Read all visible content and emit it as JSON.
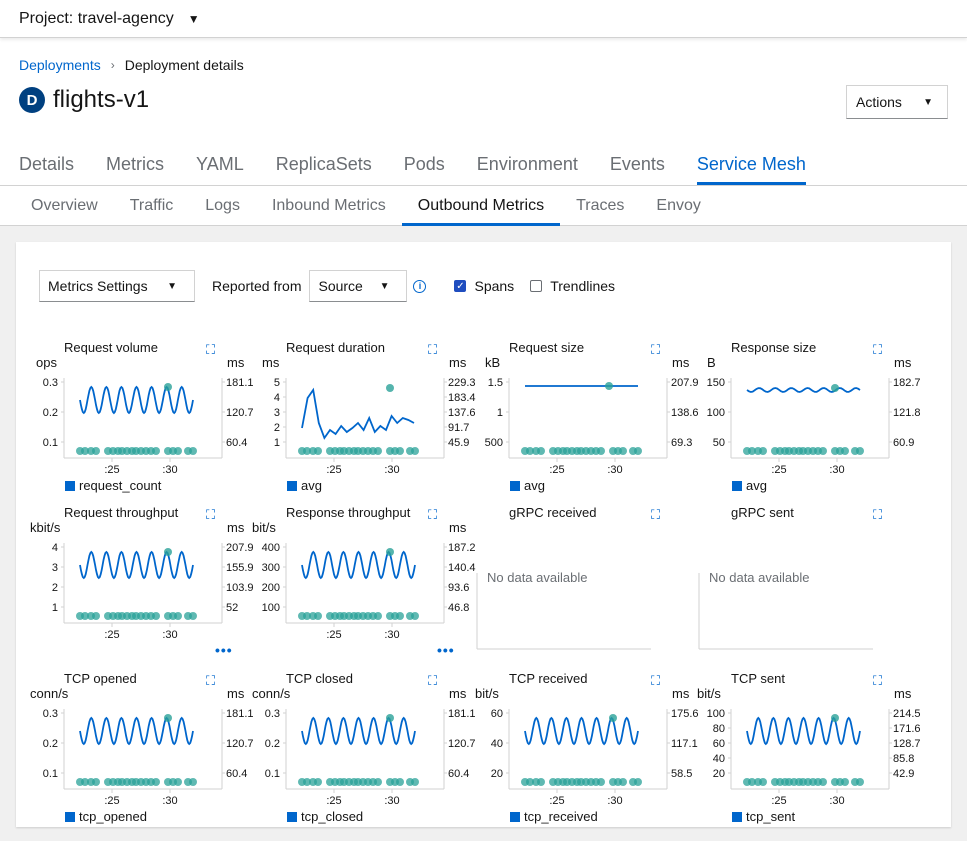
{
  "topbar": {
    "project_label": "Project: travel-agency"
  },
  "breadcrumb": {
    "link": "Deployments",
    "current": "Deployment details"
  },
  "header": {
    "badge": "D",
    "name": "flights-v1",
    "actions_label": "Actions"
  },
  "tabs": [
    "Details",
    "Metrics",
    "YAML",
    "ReplicaSets",
    "Pods",
    "Environment",
    "Events",
    "Service Mesh"
  ],
  "active_tab": "Service Mesh",
  "subtabs": [
    "Overview",
    "Traffic",
    "Logs",
    "Inbound Metrics",
    "Outbound Metrics",
    "Traces",
    "Envoy"
  ],
  "active_subtab": "Outbound Metrics",
  "toolbar": {
    "metrics_settings": "Metrics Settings",
    "reported_from_label": "Reported from",
    "reported_from_value": "Source",
    "spans_label": "Spans",
    "spans_checked": true,
    "trendlines_label": "Trendlines",
    "trendlines_checked": false
  },
  "colors": {
    "accent": "#0066cc",
    "span_dots": "#2aa198",
    "line": "#06c"
  },
  "x_ticks": [
    ":25",
    ":30"
  ],
  "no_data_text": "No data available",
  "charts": [
    {
      "title": "Request volume",
      "lunit": "ops",
      "runit": "ms",
      "yl": [
        "0.3",
        "0.2",
        "0.1"
      ],
      "yr": [
        "181.1",
        "120.7",
        "60.4"
      ],
      "legend": "request_count",
      "kind": "wave"
    },
    {
      "title": "Request duration",
      "lunit": "ms",
      "runit": "ms",
      "yl": [
        "5",
        "4",
        "3",
        "2",
        "1"
      ],
      "yr": [
        "229.3",
        "183.4",
        "137.6",
        "91.7",
        "45.9"
      ],
      "legend": "avg",
      "kind": "spike"
    },
    {
      "title": "Request size",
      "lunit": "kB",
      "runit": "ms",
      "yl": [
        "1.5",
        "1",
        "500"
      ],
      "yr": [
        "207.9",
        "138.6",
        "69.3"
      ],
      "legend": "avg",
      "kind": "flat"
    },
    {
      "title": "Response size",
      "lunit": "B",
      "runit": "ms",
      "yl": [
        "150",
        "100",
        "50"
      ],
      "yr": [
        "182.7",
        "121.8",
        "60.9"
      ],
      "legend": "avg",
      "kind": "flatwave"
    },
    {
      "title": "Request throughput",
      "lunit": "kbit/s",
      "runit": "ms",
      "yl": [
        "4",
        "3",
        "2",
        "1"
      ],
      "yr": [
        "207.9",
        "155.9",
        "103.9",
        "52"
      ],
      "legend": "",
      "kind": "wave"
    },
    {
      "title": "Response throughput",
      "lunit": "bit/s",
      "runit": "ms",
      "yl": [
        "400",
        "300",
        "200",
        "100"
      ],
      "yr": [
        "187.2",
        "140.4",
        "93.6",
        "46.8"
      ],
      "legend": "",
      "kind": "wave"
    },
    {
      "title": "gRPC received",
      "lunit": "",
      "runit": "",
      "yl": [],
      "yr": [],
      "legend": "",
      "kind": "none"
    },
    {
      "title": "gRPC sent",
      "lunit": "",
      "runit": "",
      "yl": [],
      "yr": [],
      "legend": "",
      "kind": "none"
    },
    {
      "title": "TCP opened",
      "lunit": "conn/s",
      "runit": "ms",
      "yl": [
        "0.3",
        "0.2",
        "0.1"
      ],
      "yr": [
        "181.1",
        "120.7",
        "60.4"
      ],
      "legend": "tcp_opened",
      "kind": "wave"
    },
    {
      "title": "TCP closed",
      "lunit": "conn/s",
      "runit": "ms",
      "yl": [
        "0.3",
        "0.2",
        "0.1"
      ],
      "yr": [
        "181.1",
        "120.7",
        "60.4"
      ],
      "legend": "tcp_closed",
      "kind": "wave"
    },
    {
      "title": "TCP received",
      "lunit": "bit/s",
      "runit": "ms",
      "yl": [
        "60",
        "40",
        "20"
      ],
      "yr": [
        "175.6",
        "117.1",
        "58.5"
      ],
      "legend": "tcp_received",
      "kind": "wave"
    },
    {
      "title": "TCP sent",
      "lunit": "bit/s",
      "runit": "ms",
      "yl": [
        "100",
        "80",
        "60",
        "40",
        "20"
      ],
      "yr": [
        "214.5",
        "171.6",
        "128.7",
        "85.8",
        "42.9"
      ],
      "legend": "tcp_sent",
      "kind": "wave"
    }
  ]
}
